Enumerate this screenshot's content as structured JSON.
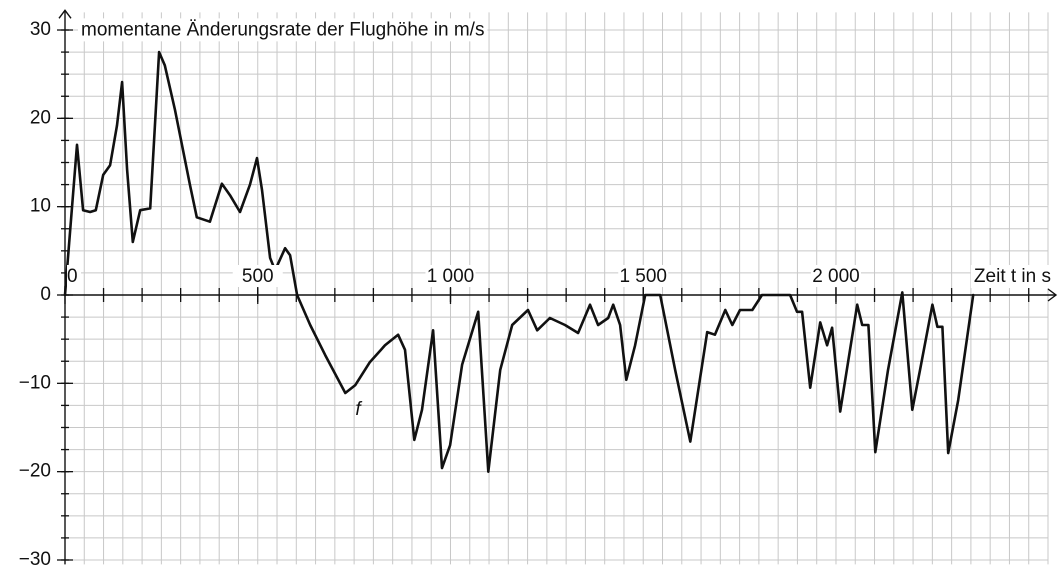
{
  "chart_data": {
    "type": "line",
    "y_label": "momentane Änderungsrate der Flughöhe in m/s",
    "x_label": "Zeit t in s",
    "curve_label": "f",
    "xlim": [
      0,
      2550
    ],
    "ylim": [
      -30.5,
      32
    ],
    "xticks": [
      0,
      500,
      {
        "value": 1000,
        "label": "1 000"
      },
      {
        "value": 1500,
        "label": "1 500"
      },
      {
        "value": 2000,
        "label": "2 000"
      }
    ],
    "yticks": [
      30,
      20,
      10,
      0,
      {
        "value": -10,
        "label": "−10"
      },
      {
        "value": -20,
        "label": "−20"
      },
      {
        "value": -30,
        "label": "−30"
      }
    ],
    "grid": true,
    "xgrid": [
      0,
      50,
      100,
      150,
      200,
      250,
      300,
      350,
      400,
      450,
      500,
      550,
      600,
      650,
      700,
      750,
      800,
      850,
      900,
      950,
      1000,
      1050,
      1100,
      1150,
      1200,
      1250,
      1300,
      1350,
      1400,
      1450,
      1500,
      1550,
      1600,
      1650,
      1700,
      1750,
      1800,
      1850,
      1900,
      1950,
      2000,
      2050,
      2100,
      2150,
      2200,
      2250,
      2300,
      2350,
      2400,
      2450,
      2500,
      2550
    ],
    "ygrid": [
      -30,
      -27.5,
      -25,
      -22.5,
      -20,
      -17.5,
      -15,
      -12.5,
      -10,
      -7.5,
      -5,
      -2.5,
      0,
      2.5,
      5,
      7.5,
      10,
      12.5,
      15,
      17.5,
      20,
      22.5,
      25,
      27.5,
      30
    ],
    "color": "#111111",
    "series": [
      {
        "x": [
          0,
          31,
          47,
          65,
          80,
          99,
          117,
          135,
          148,
          161,
          176,
          195,
          221,
          244,
          259,
          285,
          324,
          342,
          376,
          407,
          428,
          454,
          480,
          498,
          511,
          532,
          545,
          571,
          584,
          602,
          636,
          675,
          727,
          753,
          791,
          830,
          864,
          882,
          906,
          926,
          955,
          978,
          999,
          1030,
          1072,
          1098,
          1129,
          1160,
          1201,
          1225,
          1258,
          1297,
          1331,
          1362,
          1383,
          1409,
          1422,
          1440,
          1456,
          1479,
          1505,
          1544,
          1583,
          1622,
          1666,
          1686,
          1713,
          1731,
          1751,
          1783,
          1808,
          1881,
          1899,
          1912,
          1933,
          1959,
          1977,
          1990,
          2011,
          2055,
          2068,
          2084,
          2102,
          2135,
          2172,
          2198,
          2218,
          2250,
          2263,
          2276,
          2291,
          2317,
          2356
        ],
        "values": [
          0,
          17,
          9.6,
          9.4,
          9.6,
          13.6,
          14.7,
          19.2,
          24.1,
          14.2,
          6,
          9.6,
          9.8,
          27.5,
          26,
          21,
          12.5,
          8.8,
          8.3,
          12.6,
          11.3,
          9.4,
          12.5,
          15.5,
          11.9,
          4.2,
          2.8,
          5.3,
          4.5,
          0,
          -3.4,
          -6.8,
          -11.1,
          -10.2,
          -7.6,
          -5.7,
          -4.5,
          -6.2,
          -16.4,
          -13,
          -4,
          -19.6,
          -17,
          -7.9,
          -1.9,
          -20,
          -8.5,
          -3.4,
          -1.7,
          -4,
          -2.6,
          -3.4,
          -4.3,
          -1.1,
          -3.4,
          -2.6,
          -1.1,
          -3.4,
          -9.6,
          -5.7,
          0,
          0,
          -8.5,
          -16.6,
          -4.2,
          -4.5,
          -1.7,
          -3.4,
          -1.7,
          -1.7,
          0,
          0,
          -1.9,
          -1.9,
          -10.5,
          -3.1,
          -5.7,
          -3.7,
          -13.2,
          -1.1,
          -3.4,
          -3.4,
          -17.8,
          -8.5,
          0.3,
          -13,
          -8.5,
          -1.1,
          -3.6,
          -3.6,
          -17.9,
          -11.9,
          0
        ]
      }
    ]
  }
}
